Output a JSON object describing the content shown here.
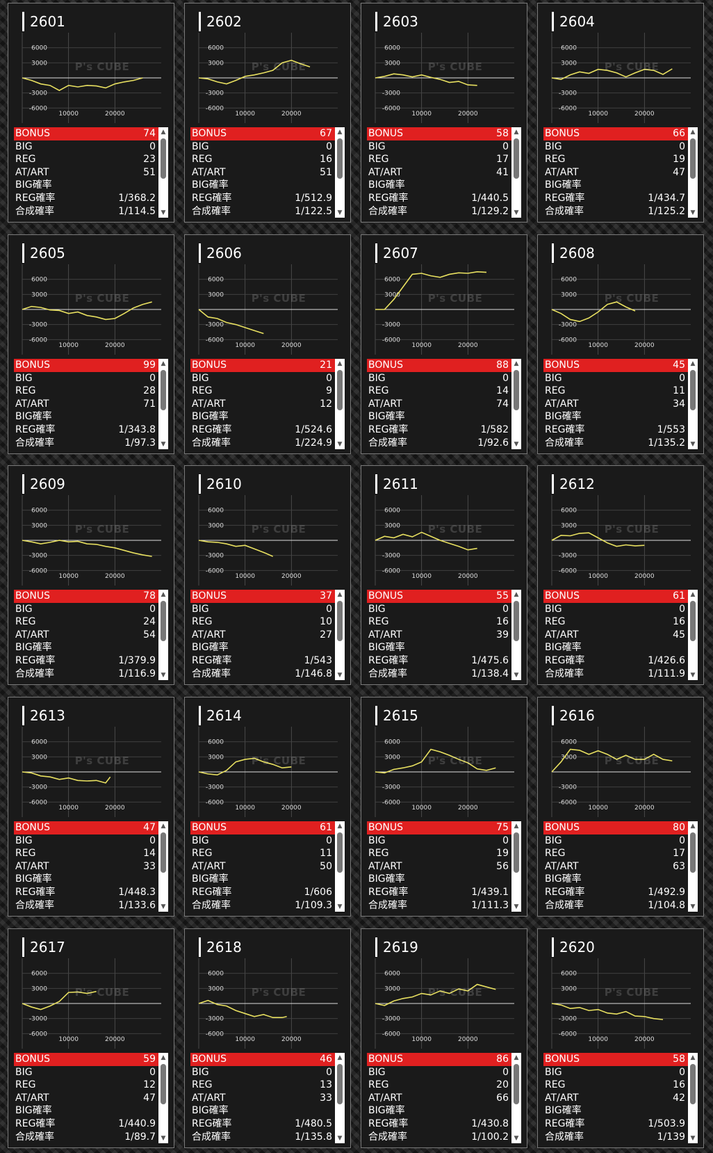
{
  "watermark": "P's CUBE",
  "colors": {
    "line": "#e8e060",
    "bonus_bar": "#e02020",
    "card_bg": "#1a1a1a",
    "border": "#7a7a7a"
  },
  "chart_axes": {
    "y_ticks": [
      "6000",
      "3000",
      "-3000",
      "-6000"
    ],
    "x_ticks": [
      "10000",
      "20000"
    ]
  },
  "labels": {
    "bonus": "BONUS",
    "big": "BIG",
    "reg": "REG",
    "atart": "AT/ART",
    "big_prob": "BIG確率",
    "reg_prob": "REG確率",
    "combined_prob": "合成確率"
  },
  "machines": [
    {
      "id": "2601",
      "bonus": "74",
      "big": "0",
      "reg": "23",
      "atart": "51",
      "big_prob": "",
      "reg_prob": "1/368.2",
      "combined_prob": "1/114.5"
    },
    {
      "id": "2602",
      "bonus": "67",
      "big": "0",
      "reg": "16",
      "atart": "51",
      "big_prob": "",
      "reg_prob": "1/512.9",
      "combined_prob": "1/122.5"
    },
    {
      "id": "2603",
      "bonus": "58",
      "big": "0",
      "reg": "17",
      "atart": "41",
      "big_prob": "",
      "reg_prob": "1/440.5",
      "combined_prob": "1/129.2"
    },
    {
      "id": "2604",
      "bonus": "66",
      "big": "0",
      "reg": "19",
      "atart": "47",
      "big_prob": "",
      "reg_prob": "1/434.7",
      "combined_prob": "1/125.2"
    },
    {
      "id": "2605",
      "bonus": "99",
      "big": "0",
      "reg": "28",
      "atart": "71",
      "big_prob": "",
      "reg_prob": "1/343.8",
      "combined_prob": "1/97.3"
    },
    {
      "id": "2606",
      "bonus": "21",
      "big": "0",
      "reg": "9",
      "atart": "12",
      "big_prob": "",
      "reg_prob": "1/524.6",
      "combined_prob": "1/224.9"
    },
    {
      "id": "2607",
      "bonus": "88",
      "big": "0",
      "reg": "14",
      "atart": "74",
      "big_prob": "",
      "reg_prob": "1/582",
      "combined_prob": "1/92.6"
    },
    {
      "id": "2608",
      "bonus": "45",
      "big": "0",
      "reg": "11",
      "atart": "34",
      "big_prob": "",
      "reg_prob": "1/553",
      "combined_prob": "1/135.2"
    },
    {
      "id": "2609",
      "bonus": "78",
      "big": "0",
      "reg": "24",
      "atart": "54",
      "big_prob": "",
      "reg_prob": "1/379.9",
      "combined_prob": "1/116.9"
    },
    {
      "id": "2610",
      "bonus": "37",
      "big": "0",
      "reg": "10",
      "atart": "27",
      "big_prob": "",
      "reg_prob": "1/543",
      "combined_prob": "1/146.8"
    },
    {
      "id": "2611",
      "bonus": "55",
      "big": "0",
      "reg": "16",
      "atart": "39",
      "big_prob": "",
      "reg_prob": "1/475.6",
      "combined_prob": "1/138.4"
    },
    {
      "id": "2612",
      "bonus": "61",
      "big": "0",
      "reg": "16",
      "atart": "45",
      "big_prob": "",
      "reg_prob": "1/426.6",
      "combined_prob": "1/111.9"
    },
    {
      "id": "2613",
      "bonus": "47",
      "big": "0",
      "reg": "14",
      "atart": "33",
      "big_prob": "",
      "reg_prob": "1/448.3",
      "combined_prob": "1/133.6"
    },
    {
      "id": "2614",
      "bonus": "61",
      "big": "0",
      "reg": "11",
      "atart": "50",
      "big_prob": "",
      "reg_prob": "1/606",
      "combined_prob": "1/109.3"
    },
    {
      "id": "2615",
      "bonus": "75",
      "big": "0",
      "reg": "19",
      "atart": "56",
      "big_prob": "",
      "reg_prob": "1/439.1",
      "combined_prob": "1/111.3"
    },
    {
      "id": "2616",
      "bonus": "80",
      "big": "0",
      "reg": "17",
      "atart": "63",
      "big_prob": "",
      "reg_prob": "1/492.9",
      "combined_prob": "1/104.8"
    },
    {
      "id": "2617",
      "bonus": "59",
      "big": "0",
      "reg": "12",
      "atart": "47",
      "big_prob": "",
      "reg_prob": "1/440.9",
      "combined_prob": "1/89.7"
    },
    {
      "id": "2618",
      "bonus": "46",
      "big": "0",
      "reg": "13",
      "atart": "33",
      "big_prob": "",
      "reg_prob": "1/480.5",
      "combined_prob": "1/135.8"
    },
    {
      "id": "2619",
      "bonus": "86",
      "big": "0",
      "reg": "20",
      "atart": "66",
      "big_prob": "",
      "reg_prob": "1/430.8",
      "combined_prob": "1/100.2"
    },
    {
      "id": "2620",
      "bonus": "58",
      "big": "0",
      "reg": "16",
      "atart": "42",
      "big_prob": "",
      "reg_prob": "1/503.9",
      "combined_prob": "1/139"
    }
  ],
  "chart_data": [
    {
      "type": "line",
      "machine": "2601",
      "xlim": [
        0,
        30000
      ],
      "ylim": [
        -9000,
        9000
      ],
      "x": [
        0,
        2000,
        4000,
        6000,
        8000,
        10000,
        12000,
        14000,
        16000,
        18000,
        20000,
        22000,
        24000,
        26000
      ],
      "y": [
        0,
        -500,
        -1200,
        -1500,
        -2500,
        -1500,
        -1800,
        -1500,
        -1600,
        -2000,
        -1200,
        -800,
        -500,
        0
      ]
    },
    {
      "type": "line",
      "machine": "2602",
      "xlim": [
        0,
        30000
      ],
      "ylim": [
        -9000,
        9000
      ],
      "x": [
        0,
        2000,
        4000,
        6000,
        8000,
        10000,
        12000,
        14000,
        16000,
        18000,
        20000,
        22000,
        24000
      ],
      "y": [
        0,
        -200,
        -800,
        -1200,
        -500,
        300,
        600,
        1000,
        1500,
        3000,
        3500,
        2800,
        2200
      ]
    },
    {
      "type": "line",
      "machine": "2603",
      "xlim": [
        0,
        30000
      ],
      "ylim": [
        -9000,
        9000
      ],
      "x": [
        0,
        2000,
        4000,
        6000,
        8000,
        10000,
        12000,
        14000,
        16000,
        18000,
        20000,
        22000
      ],
      "y": [
        0,
        300,
        800,
        600,
        200,
        600,
        100,
        -300,
        -900,
        -700,
        -1400,
        -1500
      ]
    },
    {
      "type": "line",
      "machine": "2604",
      "xlim": [
        0,
        30000
      ],
      "ylim": [
        -9000,
        9000
      ],
      "x": [
        0,
        2000,
        4000,
        6000,
        8000,
        10000,
        12000,
        14000,
        16000,
        18000,
        20000,
        22000,
        24000,
        26000
      ],
      "y": [
        0,
        -300,
        600,
        1200,
        900,
        1700,
        1500,
        1000,
        200,
        1000,
        1700,
        1500,
        700,
        1800
      ]
    },
    {
      "type": "line",
      "machine": "2605",
      "xlim": [
        0,
        30000
      ],
      "ylim": [
        -9000,
        9000
      ],
      "x": [
        0,
        2000,
        4000,
        6000,
        8000,
        10000,
        12000,
        14000,
        16000,
        18000,
        20000,
        22000,
        24000,
        26000,
        28000
      ],
      "y": [
        0,
        600,
        400,
        -100,
        -200,
        -800,
        -500,
        -1200,
        -1500,
        -2000,
        -1800,
        -800,
        300,
        1000,
        1500
      ]
    },
    {
      "type": "line",
      "machine": "2606",
      "xlim": [
        0,
        30000
      ],
      "ylim": [
        -9000,
        9000
      ],
      "x": [
        0,
        2000,
        4000,
        6000,
        8000,
        10000,
        12000,
        14000
      ],
      "y": [
        0,
        -1500,
        -1800,
        -2600,
        -3000,
        -3600,
        -4200,
        -4800
      ]
    },
    {
      "type": "line",
      "machine": "2607",
      "xlim": [
        0,
        30000
      ],
      "ylim": [
        -9000,
        9000
      ],
      "x": [
        0,
        2000,
        4000,
        6000,
        8000,
        10000,
        12000,
        14000,
        16000,
        18000,
        20000,
        22000,
        24000
      ],
      "y": [
        0,
        0,
        2000,
        4500,
        7000,
        7200,
        6700,
        6400,
        7000,
        7300,
        7200,
        7500,
        7400
      ]
    },
    {
      "type": "line",
      "machine": "2608",
      "xlim": [
        0,
        30000
      ],
      "ylim": [
        -9000,
        9000
      ],
      "x": [
        0,
        2000,
        4000,
        6000,
        8000,
        10000,
        12000,
        14000,
        16000,
        18000
      ],
      "y": [
        0,
        -800,
        -2000,
        -2400,
        -1700,
        -500,
        1000,
        1500,
        500,
        -300
      ]
    },
    {
      "type": "line",
      "machine": "2609",
      "xlim": [
        0,
        30000
      ],
      "ylim": [
        -9000,
        9000
      ],
      "x": [
        0,
        2000,
        4000,
        6000,
        8000,
        10000,
        12000,
        14000,
        16000,
        18000,
        20000,
        22000,
        24000,
        26000,
        28000
      ],
      "y": [
        0,
        -300,
        -700,
        -400,
        0,
        -300,
        -200,
        -700,
        -800,
        -1200,
        -1500,
        -2000,
        -2500,
        -2900,
        -3200
      ]
    },
    {
      "type": "line",
      "machine": "2610",
      "xlim": [
        0,
        30000
      ],
      "ylim": [
        -9000,
        9000
      ],
      "x": [
        0,
        2000,
        4000,
        6000,
        8000,
        10000,
        12000,
        14000,
        16000
      ],
      "y": [
        0,
        -300,
        -400,
        -700,
        -1200,
        -1000,
        -1700,
        -2400,
        -3200
      ]
    },
    {
      "type": "line",
      "machine": "2611",
      "xlim": [
        0,
        30000
      ],
      "ylim": [
        -9000,
        9000
      ],
      "x": [
        0,
        2000,
        4000,
        6000,
        8000,
        10000,
        12000,
        14000,
        16000,
        18000,
        20000,
        22000
      ],
      "y": [
        0,
        800,
        500,
        1200,
        700,
        1600,
        800,
        0,
        -600,
        -1200,
        -1900,
        -1600
      ]
    },
    {
      "type": "line",
      "machine": "2612",
      "xlim": [
        0,
        30000
      ],
      "ylim": [
        -9000,
        9000
      ],
      "x": [
        0,
        2000,
        4000,
        6000,
        8000,
        10000,
        12000,
        14000,
        16000,
        18000,
        20000
      ],
      "y": [
        0,
        1000,
        900,
        1400,
        1500,
        500,
        -500,
        -1200,
        -900,
        -1100,
        -1000
      ]
    },
    {
      "type": "line",
      "machine": "2613",
      "xlim": [
        0,
        30000
      ],
      "ylim": [
        -9000,
        9000
      ],
      "x": [
        0,
        2000,
        4000,
        6000,
        8000,
        10000,
        12000,
        14000,
        16000,
        18000,
        19000
      ],
      "y": [
        0,
        -200,
        -800,
        -1000,
        -1500,
        -1200,
        -1700,
        -1800,
        -1700,
        -2200,
        -1000
      ]
    },
    {
      "type": "line",
      "machine": "2614",
      "xlim": [
        0,
        30000
      ],
      "ylim": [
        -9000,
        9000
      ],
      "x": [
        0,
        2000,
        4000,
        6000,
        8000,
        10000,
        12000,
        14000,
        16000,
        18000,
        20000
      ],
      "y": [
        0,
        -400,
        -600,
        300,
        2000,
        2500,
        2700,
        2000,
        1500,
        800,
        1000
      ]
    },
    {
      "type": "line",
      "machine": "2615",
      "xlim": [
        0,
        30000
      ],
      "ylim": [
        -9000,
        9000
      ],
      "x": [
        0,
        2000,
        4000,
        6000,
        8000,
        10000,
        12000,
        14000,
        16000,
        18000,
        20000,
        22000,
        24000,
        26000
      ],
      "y": [
        0,
        -200,
        500,
        800,
        1200,
        2000,
        4500,
        4000,
        3300,
        2500,
        1800,
        600,
        300,
        800
      ]
    },
    {
      "type": "line",
      "machine": "2616",
      "xlim": [
        0,
        30000
      ],
      "ylim": [
        -9000,
        9000
      ],
      "x": [
        0,
        2000,
        4000,
        6000,
        8000,
        10000,
        12000,
        14000,
        16000,
        18000,
        20000,
        22000,
        24000,
        26000
      ],
      "y": [
        0,
        2000,
        4500,
        4300,
        3500,
        4200,
        3500,
        2500,
        3300,
        2500,
        2500,
        3500,
        2500,
        2200
      ]
    },
    {
      "type": "line",
      "machine": "2617",
      "xlim": [
        0,
        30000
      ],
      "ylim": [
        -9000,
        9000
      ],
      "x": [
        0,
        2000,
        4000,
        6000,
        8000,
        10000,
        12000,
        14000,
        16000
      ],
      "y": [
        0,
        -700,
        -1200,
        -500,
        400,
        2200,
        2300,
        2000,
        2400
      ]
    },
    {
      "type": "line",
      "machine": "2618",
      "xlim": [
        0,
        30000
      ],
      "ylim": [
        -9000,
        9000
      ],
      "x": [
        0,
        2000,
        4000,
        6000,
        8000,
        10000,
        12000,
        14000,
        16000,
        18000,
        19000
      ],
      "y": [
        0,
        600,
        -200,
        -500,
        -1400,
        -2000,
        -2600,
        -2200,
        -2800,
        -2800,
        -2600
      ]
    },
    {
      "type": "line",
      "machine": "2619",
      "xlim": [
        0,
        30000
      ],
      "ylim": [
        -9000,
        9000
      ],
      "x": [
        0,
        2000,
        4000,
        6000,
        8000,
        10000,
        12000,
        14000,
        16000,
        18000,
        20000,
        22000,
        24000,
        26000
      ],
      "y": [
        0,
        -400,
        500,
        1000,
        1300,
        2000,
        1700,
        2500,
        2000,
        2900,
        2500,
        3800,
        3300,
        2800
      ]
    },
    {
      "type": "line",
      "machine": "2620",
      "xlim": [
        0,
        30000
      ],
      "ylim": [
        -9000,
        9000
      ],
      "x": [
        0,
        2000,
        4000,
        6000,
        8000,
        10000,
        12000,
        14000,
        16000,
        18000,
        20000,
        22000,
        24000
      ],
      "y": [
        0,
        -300,
        -1000,
        -800,
        -1400,
        -1200,
        -1900,
        -2100,
        -1600,
        -2500,
        -2600,
        -3000,
        -3200
      ]
    }
  ]
}
